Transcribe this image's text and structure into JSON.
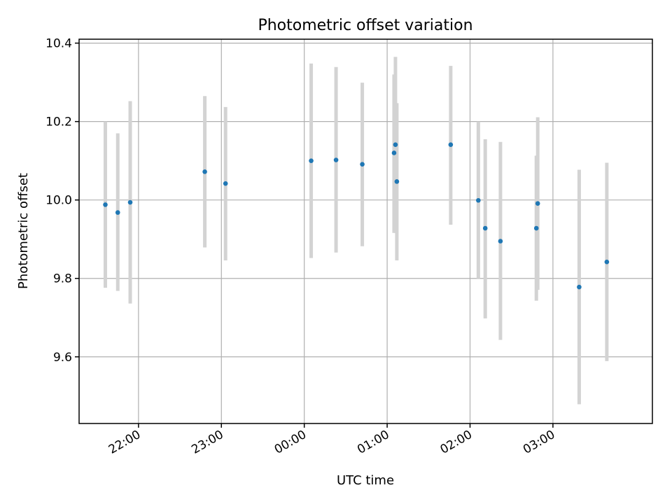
{
  "chart_data": {
    "type": "scatter",
    "title": "Photometric offset variation",
    "xlabel": "UTC time",
    "ylabel": "Photometric offset",
    "x_axis": {
      "kind": "time",
      "range": [
        "21:17",
        "04:12"
      ],
      "tick_values": [
        "22:00",
        "23:00",
        "00:00",
        "01:00",
        "02:00",
        "03:00"
      ],
      "tick_labels": [
        "22:00",
        "23:00",
        "00:00",
        "01:00",
        "02:00",
        "03:00"
      ]
    },
    "y_axis": {
      "range": [
        9.43,
        10.41
      ],
      "ticks": [
        9.6,
        9.8,
        10.0,
        10.2,
        10.4
      ],
      "tick_labels": [
        "9.6",
        "9.8",
        "10.0",
        "10.2",
        "10.4"
      ]
    },
    "grid": true,
    "series": [
      {
        "marker_color": "#1f77b4",
        "errorbar_color": "#d3d3d3",
        "points": [
          {
            "x": "21:36",
            "y": 9.988,
            "yerr_low": 9.776,
            "yerr_high": 10.2
          },
          {
            "x": "21:45",
            "y": 9.968,
            "yerr_low": 9.768,
            "yerr_high": 10.17
          },
          {
            "x": "21:54",
            "y": 9.994,
            "yerr_low": 9.736,
            "yerr_high": 10.252
          },
          {
            "x": "22:48",
            "y": 10.072,
            "yerr_low": 9.879,
            "yerr_high": 10.265
          },
          {
            "x": "23:03",
            "y": 10.042,
            "yerr_low": 9.846,
            "yerr_high": 10.237
          },
          {
            "x": "00:05",
            "y": 10.1,
            "yerr_low": 9.852,
            "yerr_high": 10.348
          },
          {
            "x": "00:23",
            "y": 10.102,
            "yerr_low": 9.866,
            "yerr_high": 10.339
          },
          {
            "x": "00:42",
            "y": 10.091,
            "yerr_low": 9.882,
            "yerr_high": 10.299
          },
          {
            "x": "01:05",
            "y": 10.12,
            "yerr_low": 9.916,
            "yerr_high": 10.32
          },
          {
            "x": "01:06",
            "y": 10.141,
            "yerr_low": 9.916,
            "yerr_high": 10.365
          },
          {
            "x": "01:07",
            "y": 10.047,
            "yerr_low": 9.846,
            "yerr_high": 10.247
          },
          {
            "x": "01:46",
            "y": 10.141,
            "yerr_low": 9.937,
            "yerr_high": 10.342
          },
          {
            "x": "02:06",
            "y": 9.999,
            "yerr_low": 9.8,
            "yerr_high": 10.2
          },
          {
            "x": "02:11",
            "y": 9.928,
            "yerr_low": 9.698,
            "yerr_high": 10.155
          },
          {
            "x": "02:22",
            "y": 9.895,
            "yerr_low": 9.643,
            "yerr_high": 10.148
          },
          {
            "x": "02:48",
            "y": 9.928,
            "yerr_low": 9.743,
            "yerr_high": 10.113
          },
          {
            "x": "02:49",
            "y": 9.991,
            "yerr_low": 9.771,
            "yerr_high": 10.211
          },
          {
            "x": "03:19",
            "y": 9.778,
            "yerr_low": 9.479,
            "yerr_high": 10.077
          },
          {
            "x": "03:39",
            "y": 9.842,
            "yerr_low": 9.589,
            "yerr_high": 10.095
          }
        ]
      }
    ]
  }
}
